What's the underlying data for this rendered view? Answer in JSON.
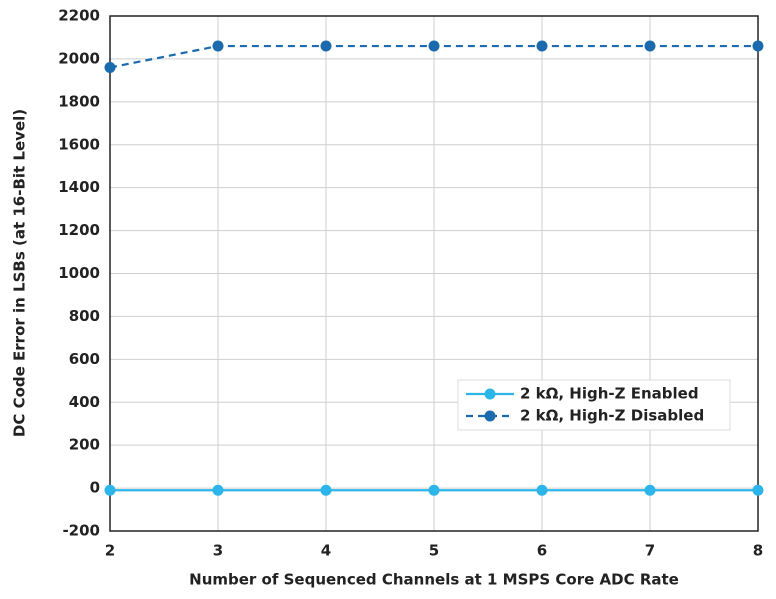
{
  "chart_data": {
    "type": "line",
    "xlabel": "Number of Sequenced Channels at 1 MSPS Core ADC Rate",
    "ylabel": "DC Code Error in LSBs (at 16-Bit Level)",
    "x": [
      2,
      3,
      4,
      5,
      6,
      7,
      8
    ],
    "series": [
      {
        "name": "2 kΩ, High-Z Enabled",
        "color": "#2bb5e8",
        "linestyle": "solid",
        "values": [
          -10,
          -10,
          -10,
          -10,
          -10,
          -10,
          -10
        ]
      },
      {
        "name": "2 kΩ, High-Z Disabled",
        "color": "#1a6aad",
        "linestyle": "dashed",
        "values": [
          1960,
          2060,
          2060,
          2060,
          2060,
          2060,
          2060
        ]
      }
    ],
    "xlim": [
      2,
      8
    ],
    "xticks": [
      2,
      3,
      4,
      5,
      6,
      7,
      8
    ],
    "ylim": [
      -200,
      2200
    ],
    "yticks": [
      -200,
      0,
      200,
      400,
      600,
      800,
      1000,
      1200,
      1400,
      1600,
      1800,
      2000,
      2200
    ],
    "grid": true
  }
}
